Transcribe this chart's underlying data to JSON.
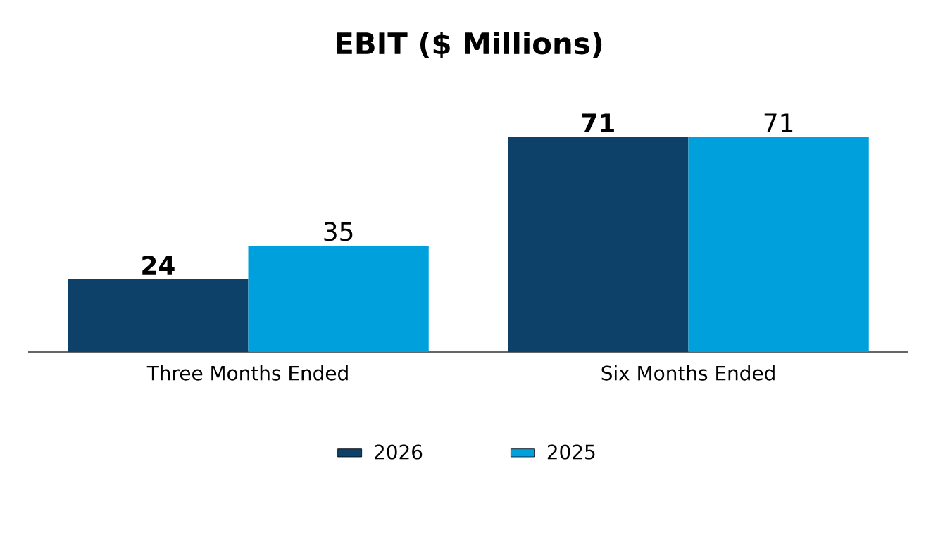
{
  "chart_data": {
    "type": "bar",
    "title": "EBIT ($ Millions)",
    "categories": [
      "Three Months Ended",
      "Six Months Ended"
    ],
    "series": [
      {
        "name": "2026",
        "color": "#0e4169",
        "values": [
          24,
          71
        ]
      },
      {
        "name": "2025",
        "color": "#00a0dc",
        "values": [
          35,
          71
        ]
      }
    ],
    "data_labels": true,
    "legend": "bottom",
    "tick_labels": "x",
    "grid": false
  }
}
